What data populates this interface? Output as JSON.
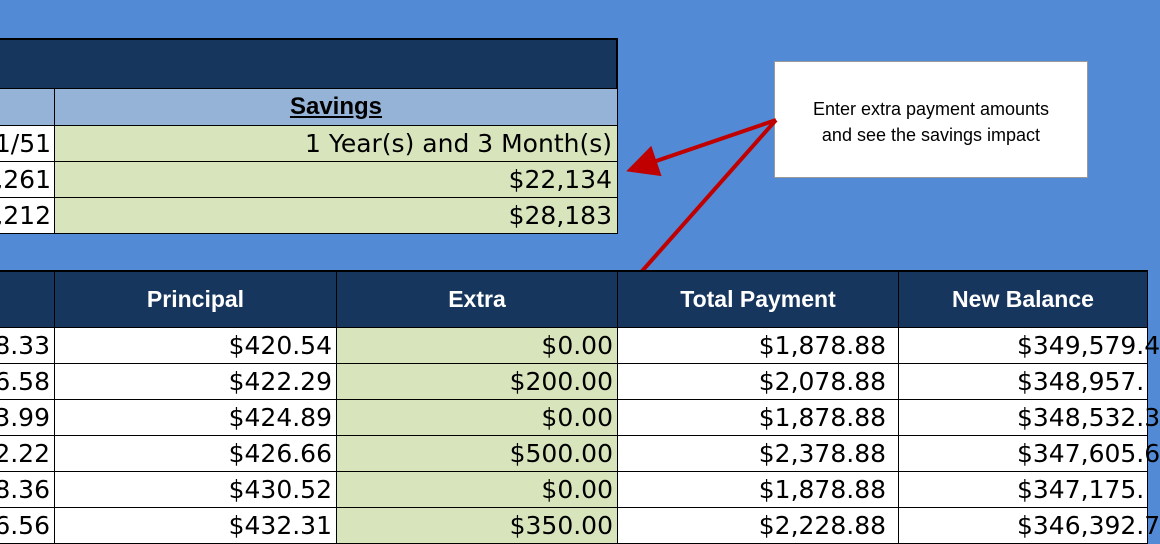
{
  "summary": {
    "savings_header": "Savings",
    "left_values": [
      "1/51",
      ",261",
      ",212"
    ],
    "savings_values": [
      "1 Year(s) and 3 Month(s)",
      "$22,134",
      "$28,183"
    ]
  },
  "callout": {
    "line1": "Enter extra payment amounts",
    "line2": "and see the savings impact"
  },
  "schedule": {
    "columns": [
      "",
      "Principal",
      "Extra",
      "Total Payment",
      "New Balance"
    ],
    "rows": [
      {
        "c0": "8.33",
        "principal": "$420.54",
        "extra": "$0.00",
        "total": "$1,878.88",
        "balance": "$349,579.4"
      },
      {
        "c0": "6.58",
        "principal": "$422.29",
        "extra": "$200.00",
        "total": "$2,078.88",
        "balance": "$348,957."
      },
      {
        "c0": "3.99",
        "principal": "$424.89",
        "extra": "$0.00",
        "total": "$1,878.88",
        "balance": "$348,532.3"
      },
      {
        "c0": "2.22",
        "principal": "$426.66",
        "extra": "$500.00",
        "total": "$2,378.88",
        "balance": "$347,605.6"
      },
      {
        "c0": "8.36",
        "principal": "$430.52",
        "extra": "$0.00",
        "total": "$1,878.88",
        "balance": "$347,175."
      },
      {
        "c0": "6.56",
        "principal": "$432.31",
        "extra": "$350.00",
        "total": "$2,228.88",
        "balance": "$346,392.7"
      }
    ]
  },
  "colors": {
    "background": "#528ad6",
    "header_navy": "#17365d",
    "subheader_blue": "#95b3d7",
    "input_green": "#d8e4bc",
    "arrow_red": "#c00000"
  }
}
